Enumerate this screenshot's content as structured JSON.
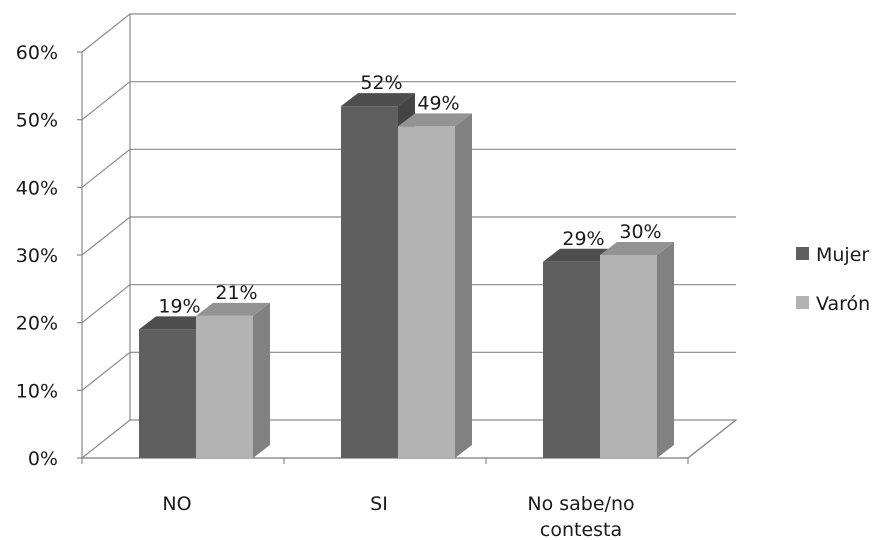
{
  "chart_data": {
    "type": "bar",
    "variant": "3d-clustered-column",
    "categories": [
      "NO",
      "SI",
      "No sabe/no contesta"
    ],
    "series": [
      {
        "name": "Mujer",
        "values": [
          19,
          52,
          29
        ],
        "labels": [
          "19%",
          "52%",
          "29%"
        ],
        "color": "#5f5f5f"
      },
      {
        "name": "Varón",
        "values": [
          21,
          49,
          30
        ],
        "labels": [
          "21%",
          "49%",
          "30%"
        ],
        "color": "#b3b3b3"
      }
    ],
    "y_ticks": [
      "0%",
      "10%",
      "20%",
      "30%",
      "40%",
      "50%",
      "60%"
    ],
    "ylim": [
      0,
      60
    ],
    "title": "",
    "xlabel": "",
    "ylabel": "",
    "grid": true,
    "legend_position": "right"
  }
}
